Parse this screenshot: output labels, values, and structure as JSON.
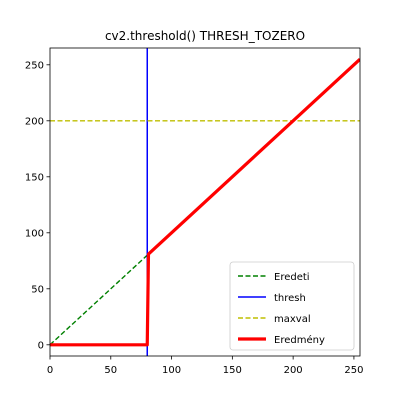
{
  "chart_data": {
    "type": "line",
    "title": "cv2.threshold() THRESH_TOZERO",
    "xlabel": "",
    "ylabel": "",
    "xlim": [
      0,
      255
    ],
    "ylim": [
      -10,
      265
    ],
    "xticks": [
      0,
      50,
      100,
      150,
      200,
      250
    ],
    "yticks": [
      0,
      50,
      100,
      150,
      200,
      250
    ],
    "grid": false,
    "legend": {
      "placement": "lower-right"
    },
    "series": [
      {
        "name": "Eredeti",
        "style": "dashed",
        "color": "#008000",
        "x": [
          0,
          80
        ],
        "y": [
          0,
          80
        ]
      },
      {
        "name": "thresh",
        "style": "solid",
        "color": "#0000ff",
        "x": [
          80,
          80
        ],
        "y": [
          -10,
          265
        ]
      },
      {
        "name": "maxval",
        "style": "dashed",
        "color": "#bfbf00",
        "x": [
          0,
          255
        ],
        "y": [
          200,
          200
        ]
      },
      {
        "name": "Eredmény",
        "style": "solid-thick",
        "color": "#ff0000",
        "x": [
          0,
          80,
          81,
          255
        ],
        "y": [
          0,
          0,
          81,
          255
        ]
      }
    ]
  }
}
